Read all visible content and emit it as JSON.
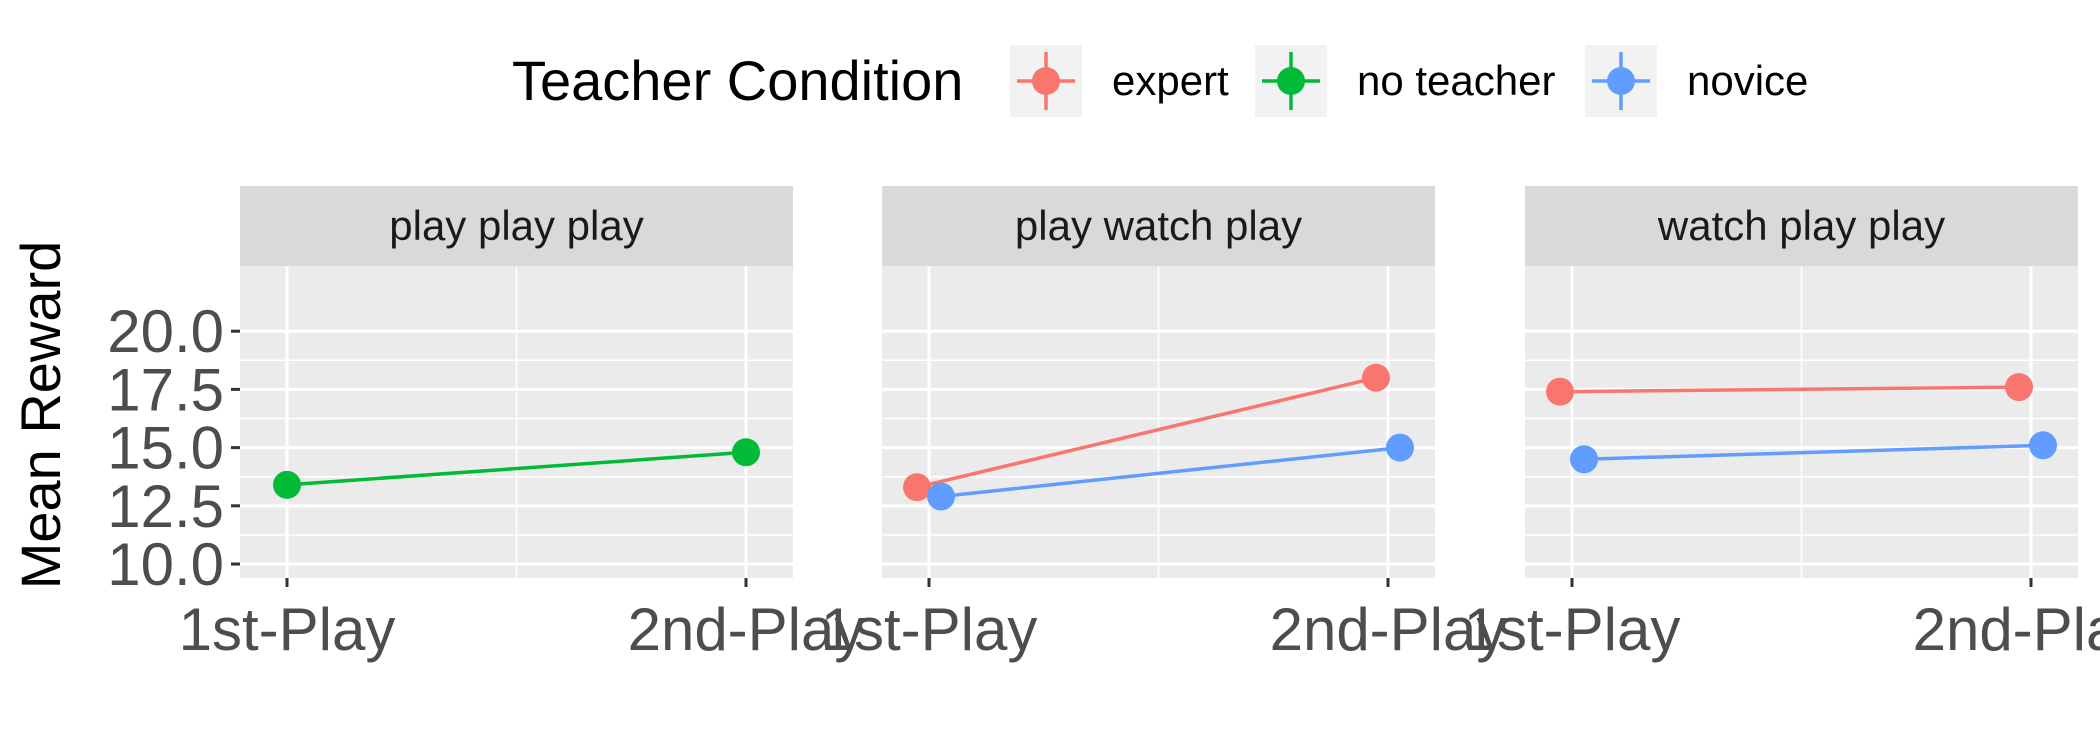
{
  "chart_data": {
    "type": "line",
    "title": "",
    "ylabel": "Mean Reward",
    "xlabel": "",
    "categories": [
      "1st-Play",
      "2nd-Play"
    ],
    "ylim": [
      9.4,
      22.8
    ],
    "yticks": [
      "10.0",
      "12.5",
      "15.0",
      "17.5",
      "20.0"
    ],
    "legend": {
      "title": "Teacher Condition",
      "position": "top",
      "entries": [
        {
          "name": "expert",
          "color": "#F8766D"
        },
        {
          "name": "no teacher",
          "color": "#00BA38"
        },
        {
          "name": "novice",
          "color": "#619CFF"
        }
      ]
    },
    "panel_background": "#EBEBEB",
    "strip_background": "#D9D9D9",
    "grid": true,
    "panels": [
      {
        "title": "play play play",
        "series": [
          {
            "name": "no teacher",
            "color": "#00BA38",
            "values": [
              13.4,
              14.8
            ]
          }
        ]
      },
      {
        "title": "play watch play",
        "series": [
          {
            "name": "expert",
            "color": "#F8766D",
            "values": [
              13.3,
              18.0
            ]
          },
          {
            "name": "novice",
            "color": "#619CFF",
            "values": [
              12.9,
              15.0
            ]
          }
        ]
      },
      {
        "title": "watch play play",
        "series": [
          {
            "name": "expert",
            "color": "#F8766D",
            "values": [
              17.4,
              17.6
            ]
          },
          {
            "name": "novice",
            "color": "#619CFF",
            "values": [
              14.5,
              15.1
            ]
          }
        ]
      }
    ]
  }
}
